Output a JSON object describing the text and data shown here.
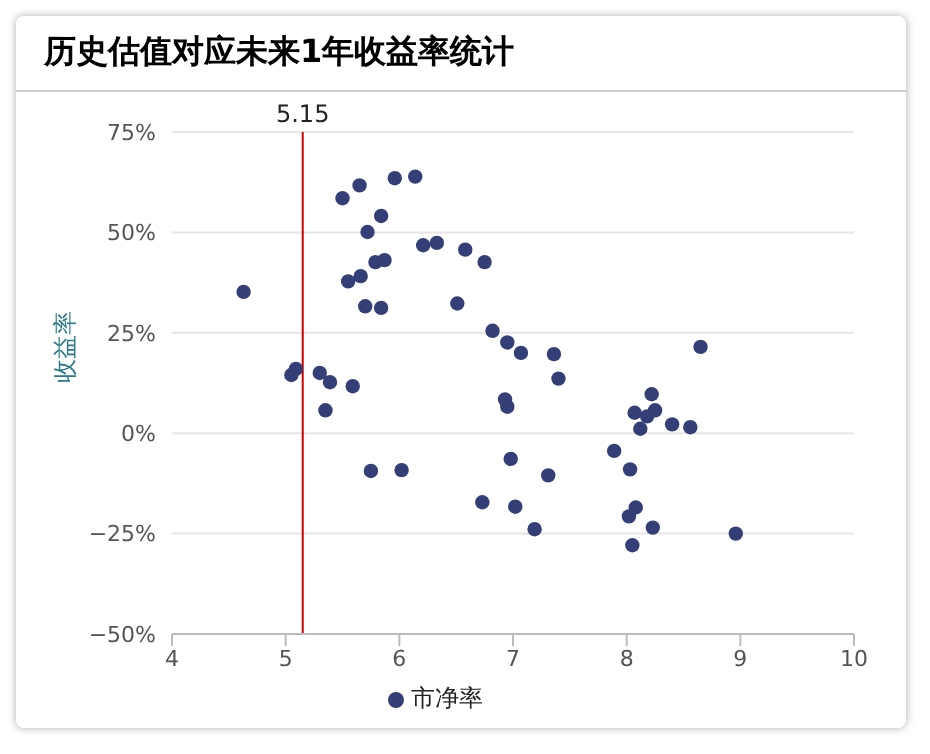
{
  "chart_data": {
    "type": "scatter",
    "title": "历史估值对应未来1年收益率统计",
    "ylabel": "收益率",
    "x": [
      4.63,
      5.05,
      5.09,
      5.3,
      5.39,
      5.59,
      5.35,
      5.5,
      5.65,
      5.96,
      6.14,
      5.84,
      5.72,
      6.21,
      6.33,
      6.58,
      6.75,
      5.79,
      5.87,
      5.55,
      5.66,
      5.7,
      5.84,
      6.51,
      6.82,
      6.95,
      7.07,
      5.75,
      6.02,
      6.93,
      6.95,
      6.98,
      6.73,
      7.02,
      7.19,
      7.36,
      7.4,
      8.65,
      8.22,
      8.07,
      8.25,
      8.18,
      8.12,
      8.4,
      8.56,
      7.31,
      7.89,
      8.03,
      8.08,
      8.02,
      8.23,
      8.96,
      8.05
    ],
    "series": [
      {
        "name": "市净率",
        "color": "#343f78",
        "values": [
          35.2,
          14.5,
          16,
          15.0,
          12.7,
          11.7,
          5.7,
          58.5,
          61.7,
          63.5,
          63.9,
          54.1,
          50.1,
          46.8,
          47.4,
          45.7,
          42.6,
          42.6,
          43.1,
          37.8,
          39.1,
          31.6,
          31.2,
          32.3,
          25.5,
          22.6,
          20.0,
          -9.4,
          -9.2,
          8.4,
          6.6,
          -6.4,
          -17.2,
          -18.3,
          -23.9,
          19.7,
          13.6,
          21.5,
          9.7,
          5.1,
          5.7,
          4.2,
          1.1,
          2.2,
          1.5,
          -10.5,
          -4.4,
          -9.0,
          -18.5,
          -20.7,
          -23.5,
          -25.0,
          -27.9
        ]
      }
    ],
    "xlim": [
      4,
      10
    ],
    "xticks": [
      4,
      5,
      6,
      7,
      8,
      9,
      10
    ],
    "ylim": [
      -50,
      75
    ],
    "yticks": [
      {
        "value": -50,
        "label": "−50%"
      },
      {
        "value": -25,
        "label": "−25%"
      },
      {
        "value": 0,
        "label": "0%"
      },
      {
        "value": 25,
        "label": "25%"
      },
      {
        "value": 50,
        "label": "50%"
      },
      {
        "value": 75,
        "label": "75%"
      }
    ],
    "ref_lines": [
      {
        "axis": "x",
        "value": 5.15,
        "label": "5.15",
        "color": "#cc0000"
      }
    ],
    "grid": "y",
    "legend": "bottom",
    "marker": "circle"
  }
}
